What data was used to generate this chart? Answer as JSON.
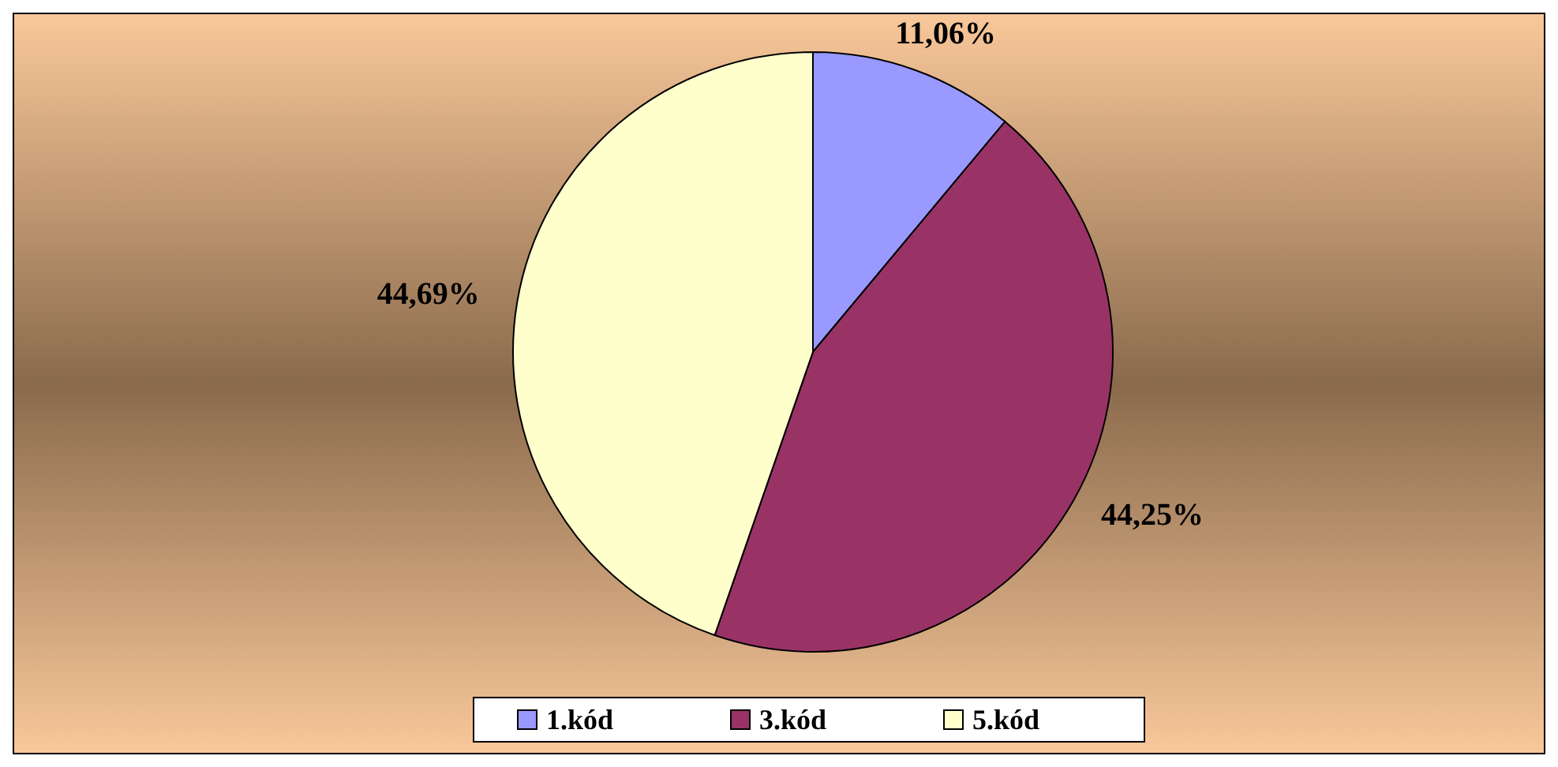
{
  "chart_data": {
    "type": "pie",
    "categories": [
      "1.kód",
      "3.kód",
      "5.kód"
    ],
    "values": [
      11.06,
      44.25,
      44.69
    ],
    "colors": [
      "#9999ff",
      "#993366",
      "#ffffcc"
    ],
    "value_labels": [
      "11,06%",
      "44,25%",
      "44,69%"
    ],
    "legend": "bottom"
  }
}
